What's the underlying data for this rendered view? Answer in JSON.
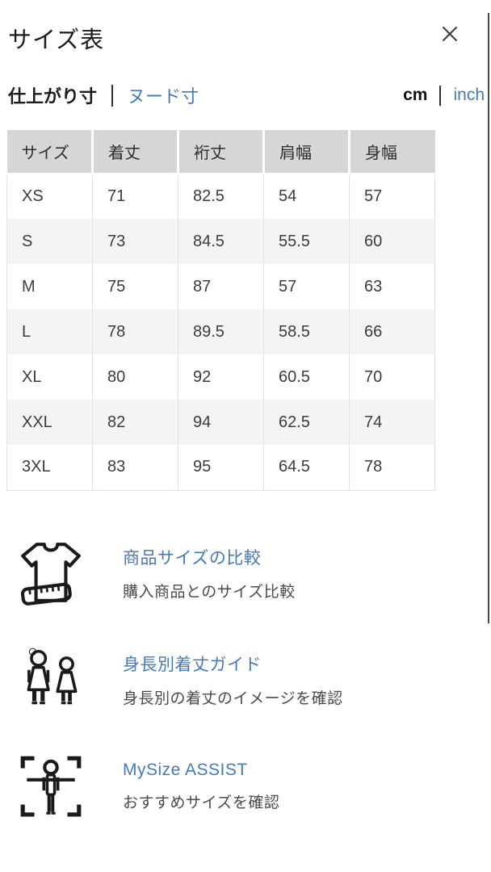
{
  "header": {
    "title": "サイズ表"
  },
  "tabs": {
    "items": [
      {
        "label": "仕上がり寸",
        "active": true
      },
      {
        "label": "ヌード寸",
        "active": false
      }
    ]
  },
  "units": {
    "items": [
      {
        "label": "cm",
        "active": true
      },
      {
        "label": "inch",
        "active": false
      }
    ]
  },
  "size_table": {
    "columns": [
      "サイズ",
      "着丈",
      "裄丈",
      "肩幅",
      "身幅"
    ],
    "rows": [
      [
        "XS",
        "71",
        "82.5",
        "54",
        "57"
      ],
      [
        "S",
        "73",
        "84.5",
        "55.5",
        "60"
      ],
      [
        "M",
        "75",
        "87",
        "57",
        "63"
      ],
      [
        "L",
        "78",
        "89.5",
        "58.5",
        "66"
      ],
      [
        "XL",
        "80",
        "92",
        "60.5",
        "70"
      ],
      [
        "XXL",
        "82",
        "94",
        "62.5",
        "74"
      ],
      [
        "3XL",
        "83",
        "95",
        "64.5",
        "78"
      ]
    ]
  },
  "features": [
    {
      "icon": "tshirt-ruler-icon",
      "title": "商品サイズの比較",
      "subtitle": "購入商品とのサイズ比較"
    },
    {
      "icon": "height-guide-icon",
      "title": "身長別着丈ガイド",
      "subtitle": "身長別の着丈のイメージを確認"
    },
    {
      "icon": "mysize-assist-icon",
      "title": "MySize ASSIST",
      "subtitle": "おすすめサイズを確認"
    }
  ],
  "icons": {
    "close": "✕"
  },
  "colors": {
    "link_blue": "#4579b8",
    "table_header_bg": "#d6d6d6",
    "row_alt_bg": "#f4f4f4",
    "table_border": "#e2e2e2",
    "text_dark": "#1c1c1c",
    "text_body": "#3c3c3c",
    "text_muted": "#4a4a4a"
  }
}
